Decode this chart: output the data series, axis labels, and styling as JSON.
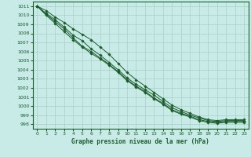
{
  "title": "Graphe pression niveau de la mer (hPa)",
  "bg_color": "#c8ebe8",
  "grid_color": "#a8cfc8",
  "line_color": "#1a5c2a",
  "text_color": "#1a5c2a",
  "spine_color": "#1a5c2a",
  "xlim": [
    -0.5,
    23.5
  ],
  "ylim": [
    997.5,
    1011.5
  ],
  "yticks": [
    998,
    999,
    1000,
    1001,
    1002,
    1003,
    1004,
    1005,
    1006,
    1007,
    1008,
    1009,
    1010,
    1011
  ],
  "xticks": [
    0,
    1,
    2,
    3,
    4,
    5,
    6,
    7,
    8,
    9,
    10,
    11,
    12,
    13,
    14,
    15,
    16,
    17,
    18,
    19,
    20,
    21,
    22,
    23
  ],
  "series": [
    [
      1011.0,
      1010.0,
      1009.1,
      1008.2,
      1007.3,
      1006.5,
      1005.8,
      1005.2,
      1004.5,
      1003.7,
      1002.8,
      1002.1,
      1001.5,
      1000.8,
      1000.2,
      999.5,
      999.1,
      998.8,
      998.4,
      998.2,
      998.1,
      998.2,
      998.2,
      998.2
    ],
    [
      1011.0,
      1010.1,
      1009.3,
      1008.5,
      1007.5,
      1006.6,
      1006.0,
      1005.3,
      1004.6,
      1003.8,
      1002.9,
      1002.2,
      1001.6,
      1000.9,
      1000.3,
      999.6,
      999.2,
      998.9,
      998.5,
      998.3,
      998.2,
      998.3,
      998.3,
      998.3
    ],
    [
      1011.0,
      1010.2,
      1009.5,
      1008.7,
      1007.8,
      1007.2,
      1006.3,
      1005.6,
      1004.8,
      1004.0,
      1003.1,
      1002.4,
      1001.8,
      1001.2,
      1000.5,
      999.8,
      999.4,
      999.0,
      998.7,
      998.4,
      998.3,
      998.4,
      998.4,
      998.4
    ],
    [
      1011.0,
      1010.5,
      1009.8,
      1009.2,
      1008.5,
      1007.9,
      1007.3,
      1006.5,
      1005.7,
      1004.7,
      1003.7,
      1002.9,
      1002.2,
      1001.5,
      1000.8,
      1000.1,
      999.6,
      999.2,
      998.8,
      998.5,
      998.4,
      998.5,
      998.5,
      998.5
    ]
  ]
}
